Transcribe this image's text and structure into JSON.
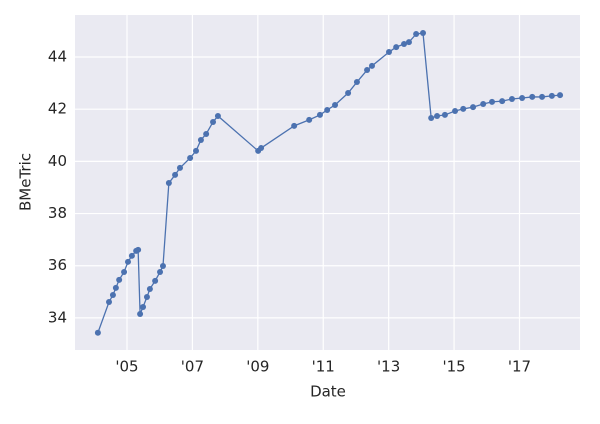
{
  "chart_data": {
    "type": "line",
    "x_label": "Date",
    "y_label": "BMeTric",
    "x": [
      2004.11,
      2004.45,
      2004.57,
      2004.66,
      2004.76,
      2004.91,
      2005.03,
      2005.15,
      2005.28,
      2005.34,
      2005.4,
      2005.49,
      2005.61,
      2005.7,
      2005.86,
      2006.01,
      2006.1,
      2006.28,
      2006.47,
      2006.62,
      2006.93,
      2007.11,
      2007.26,
      2007.42,
      2007.63,
      2007.78,
      2009.01,
      2009.1,
      2010.11,
      2010.57,
      2010.9,
      2011.12,
      2011.36,
      2011.76,
      2012.03,
      2012.34,
      2012.49,
      2013.01,
      2013.23,
      2013.47,
      2013.62,
      2013.84,
      2014.05,
      2014.3,
      2014.48,
      2014.72,
      2015.03,
      2015.28,
      2015.58,
      2015.89,
      2016.16,
      2016.47,
      2016.77,
      2017.08,
      2017.39,
      2017.69,
      2017.99,
      2018.24
    ],
    "series": [
      {
        "color": "#4c72b0",
        "values": [
          33.43,
          34.61,
          34.88,
          35.15,
          35.46,
          35.76,
          36.15,
          36.38,
          36.57,
          36.61,
          34.15,
          34.42,
          34.8,
          35.11,
          35.42,
          35.76,
          35.99,
          39.17,
          39.48,
          39.75,
          40.13,
          40.4,
          40.82,
          41.05,
          41.51,
          41.74,
          40.4,
          40.51,
          41.36,
          41.59,
          41.78,
          41.97,
          42.16,
          42.62,
          43.04,
          43.5,
          43.66,
          44.19,
          44.38,
          44.5,
          44.57,
          44.88,
          44.92,
          41.66,
          41.74,
          41.78,
          41.93,
          42.01,
          42.08,
          42.2,
          42.28,
          42.31,
          42.39,
          42.43,
          42.47,
          42.47,
          42.51,
          42.54
        ]
      }
    ],
    "xlim": [
      2003.41,
      2018.85
    ],
    "xticks": [
      {
        "value": 2005,
        "label": "'05"
      },
      {
        "value": 2007,
        "label": "'07"
      },
      {
        "value": 2009,
        "label": "'09"
      },
      {
        "value": 2011,
        "label": "'11"
      },
      {
        "value": 2013,
        "label": "'13"
      },
      {
        "value": 2015,
        "label": "'15"
      },
      {
        "value": 2017,
        "label": "'17"
      }
    ],
    "ylim": [
      32.77,
      45.61
    ],
    "yticks": [
      34,
      36,
      38,
      40,
      42,
      44
    ],
    "grid": true
  }
}
